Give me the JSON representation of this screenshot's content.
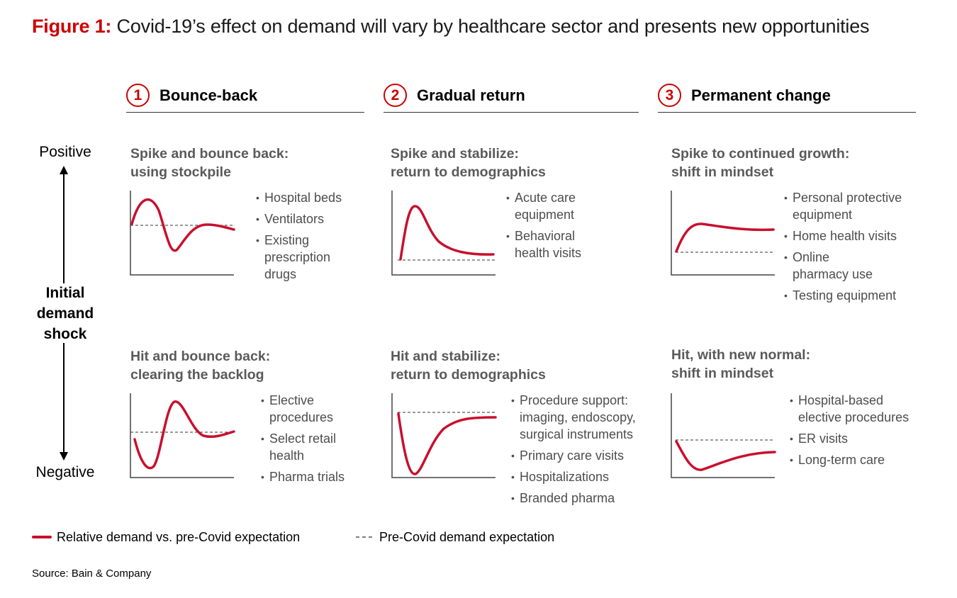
{
  "title": {
    "label": "Figure 1:",
    "text": "Covid-19’s effect on demand will vary by healthcare sector and presents new opportunities"
  },
  "columns": [
    {
      "number": "1",
      "name": "Bounce-back"
    },
    {
      "number": "2",
      "name": "Gradual return"
    },
    {
      "number": "3",
      "name": "Permanent change"
    }
  ],
  "axis": {
    "top": "Positive",
    "middle": [
      "Initial",
      "demand",
      "shock"
    ],
    "bottom": "Negative"
  },
  "panels": [
    {
      "title": [
        "Spike and bounce back:",
        "using stockpile"
      ],
      "items": [
        [
          "Hospital beds"
        ],
        [
          "Ventilators"
        ],
        [
          "Existing",
          "prescription",
          "drugs"
        ]
      ]
    },
    {
      "title": [
        "Spike and stabilize:",
        "return to demographics"
      ],
      "items": [
        [
          "Acute care",
          "equipment"
        ],
        [
          "Behavioral",
          "health visits"
        ]
      ]
    },
    {
      "title": [
        "Spike to continued growth:",
        "shift in mindset"
      ],
      "items": [
        [
          "Personal protective",
          "equipment"
        ],
        [
          "Home health visits"
        ],
        [
          "Online",
          "pharmacy use"
        ],
        [
          "Testing equipment"
        ]
      ]
    },
    {
      "title": [
        "Hit and bounce back:",
        "clearing the backlog"
      ],
      "items": [
        [
          "Elective",
          "procedures"
        ],
        [
          "Select retail",
          "health"
        ],
        [
          "Pharma trials"
        ]
      ]
    },
    {
      "title": [
        "Hit and stabilize:",
        "return to demographics"
      ],
      "items": [
        [
          "Procedure support:",
          "imaging, endoscopy,",
          "surgical instruments"
        ],
        [
          "Primary care visits"
        ],
        [
          "Hospitalizations"
        ],
        [
          "Branded pharma"
        ]
      ]
    },
    {
      "title": [
        "Hit, with new normal:",
        "shift in mindset"
      ],
      "items": [
        [
          "Hospital-based",
          "elective procedures"
        ],
        [
          "ER visits"
        ],
        [
          "Long-term care"
        ]
      ]
    }
  ],
  "legend": {
    "solid": "Relative demand vs. pre-Covid expectation",
    "dashed": "Pre-Covid demand expectation"
  },
  "source": "Source: Bain & Company",
  "colors": {
    "accent": "#cc0000",
    "curve": "#c8102e",
    "text_gray": "#5a5a5a"
  }
}
